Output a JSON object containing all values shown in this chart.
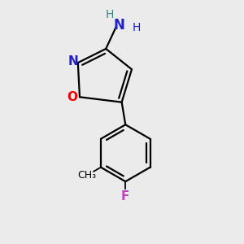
{
  "background_color": "#ebebeb",
  "bond_color": "#000000",
  "N_color": "#2020cc",
  "O_color": "#ee0000",
  "F_color": "#bb44bb",
  "NH2_N_color": "#2020cc",
  "NH2_H_color": "#408080",
  "line_width": 1.6,
  "figsize": [
    3.0,
    3.0
  ],
  "dpi": 100,
  "xlim": [
    -1.0,
    1.4
  ],
  "ylim": [
    -1.8,
    1.4
  ]
}
